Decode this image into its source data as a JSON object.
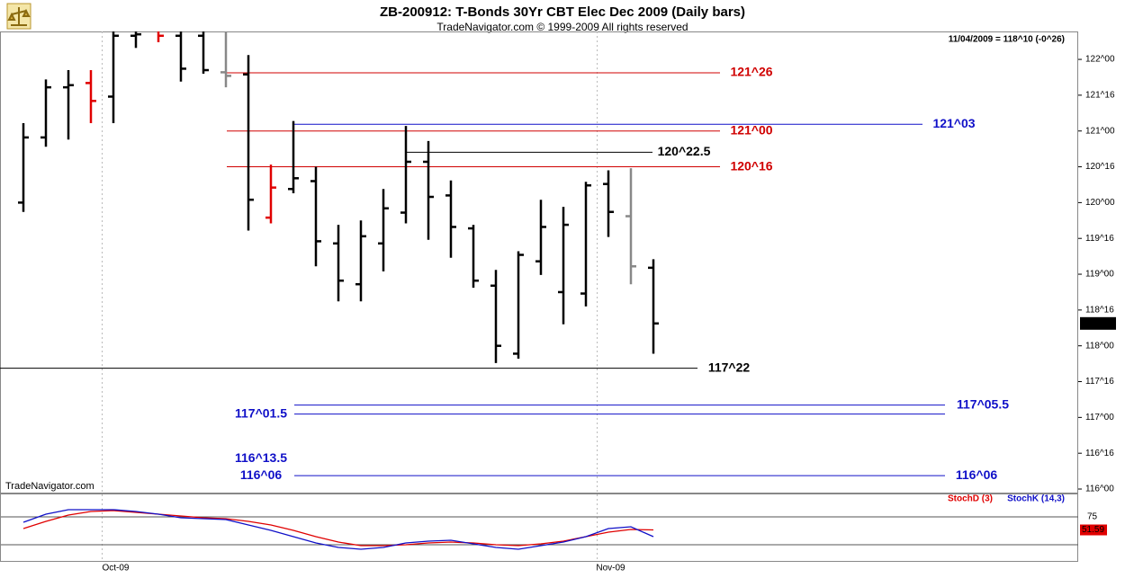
{
  "chart_data": {
    "type": "ohlc",
    "title": "ZB-200912:  T-Bonds 30Yr CBT Elec Dec 2009  (Daily bars)",
    "subtitle": "TradeNavigator.com © 1999-2009 All rights reserved",
    "last_quote": "11/04/2009 = 118^10 (-0^26)",
    "watermark": "TradeNavigator.com",
    "last_price": {
      "value": 118.3125,
      "label": "118^10"
    },
    "open": [
      120.0,
      120.91,
      121.61,
      121.67,
      121.48,
      122.33,
      122.45,
      122.33,
      122.33,
      121.82,
      121.79,
      119.79,
      120.19,
      120.3,
      119.43,
      118.86,
      119.43,
      119.86,
      120.57,
      120.1,
      119.64,
      118.84,
      117.89,
      119.18,
      118.75,
      118.73,
      120.26,
      119.81,
      119.09
    ],
    "high": [
      121.11,
      121.72,
      121.85,
      121.85,
      122.45,
      122.58,
      122.52,
      122.45,
      122.45,
      122.39,
      122.06,
      120.53,
      121.14,
      120.5,
      119.69,
      119.75,
      120.19,
      121.07,
      120.86,
      120.31,
      119.69,
      119.06,
      119.32,
      120.04,
      119.94,
      120.29,
      120.45,
      120.48,
      119.21
    ],
    "low": [
      119.87,
      120.78,
      120.88,
      121.11,
      121.11,
      122.16,
      122.24,
      121.69,
      121.8,
      121.61,
      119.61,
      119.71,
      120.13,
      119.11,
      118.62,
      118.62,
      119.04,
      119.71,
      119.48,
      119.23,
      118.81,
      117.76,
      117.82,
      118.99,
      118.3,
      118.55,
      119.52,
      118.86,
      117.89
    ],
    "close": [
      120.91,
      121.61,
      121.64,
      121.42,
      122.33,
      122.35,
      122.33,
      121.87,
      121.85,
      121.77,
      120.04,
      120.21,
      120.34,
      119.46,
      118.91,
      119.53,
      119.92,
      120.57,
      120.08,
      119.66,
      118.91,
      118.0,
      119.27,
      119.66,
      119.69,
      120.24,
      119.87,
      119.11,
      118.3125
    ],
    "colors": [
      "#000",
      "#000",
      "#000",
      "#e00000",
      "#000",
      "#000",
      "#e00000",
      "#000",
      "#000",
      "#888",
      "#000",
      "#e00000",
      "#000",
      "#000",
      "#000",
      "#000",
      "#000",
      "#000",
      "#000",
      "#000",
      "#000",
      "#000",
      "#000",
      "#000",
      "#000",
      "#000",
      "#000",
      "#888",
      "#000"
    ],
    "ylim": [
      115.95,
      122.39
    ],
    "yticks": [
      {
        "value": 116,
        "label": "116^00"
      },
      {
        "value": 116.5,
        "label": "116^16"
      },
      {
        "value": 117,
        "label": "117^00"
      },
      {
        "value": 117.5,
        "label": "117^16"
      },
      {
        "value": 118,
        "label": "118^00"
      },
      {
        "value": 118.5,
        "label": "118^16"
      },
      {
        "value": 119,
        "label": "119^00"
      },
      {
        "value": 119.5,
        "label": "119^16"
      },
      {
        "value": 120,
        "label": "120^00"
      },
      {
        "value": 120.5,
        "label": "120^16"
      },
      {
        "value": 121,
        "label": "121^00"
      },
      {
        "value": 121.5,
        "label": "121^16"
      },
      {
        "value": 122,
        "label": "122^00"
      }
    ],
    "xticks": [
      {
        "value": 3.5,
        "label": "Oct-09"
      },
      {
        "value": 25.5,
        "label": "Nov-09"
      }
    ],
    "levels": [
      {
        "value": 121.8125,
        "label": "121^26",
        "color": "#d00000"
      },
      {
        "value": 121.09375,
        "label": "121^03",
        "color": "#1010c8"
      },
      {
        "value": 121.0,
        "label": "121^00",
        "color": "#d00000"
      },
      {
        "value": 120.703125,
        "label": "120^22.5",
        "color": "#000000"
      },
      {
        "value": 120.5,
        "label": "120^16",
        "color": "#d00000"
      },
      {
        "value": 117.6875,
        "label": "117^22",
        "color": "#000000"
      },
      {
        "value": 117.171875,
        "label": "117^05.5",
        "color": "#1010c8"
      },
      {
        "value": 117.046875,
        "label": "117^01.5",
        "color": "#1010c8"
      },
      {
        "value": 116.421875,
        "label": "116^13.5",
        "color": "#1010c8"
      },
      {
        "value": 116.1875,
        "label": "116^06",
        "color": "#1010c8"
      }
    ],
    "stoch": {
      "ylim": [
        0,
        100
      ],
      "yticks": [
        75
      ],
      "guides": [
        75,
        25
      ],
      "series": [
        {
          "name": "StochD (3)",
          "color": "#e00000",
          "values": [
            54.0,
            66.9,
            78.2,
            84.7,
            86.3,
            83.1,
            79.8,
            76.6,
            73.4,
            71.8,
            66.9,
            60.5,
            50.8,
            39.5,
            29.8,
            23.4,
            23.4,
            25.0,
            28.2,
            29.8,
            28.2,
            25.0,
            23.4,
            26.6,
            31.5,
            39.5,
            47.6,
            52.4,
            51.59
          ],
          "last_label": "51.59"
        },
        {
          "name": "StochK (14,3)",
          "color": "#1010c8",
          "values": [
            65.3,
            79.8,
            87.9,
            87.9,
            87.9,
            84.7,
            79.8,
            73.4,
            71.8,
            70.2,
            60.5,
            50.8,
            39.5,
            28.2,
            20.2,
            16.9,
            20.2,
            28.2,
            31.5,
            33.1,
            26.6,
            20.2,
            16.9,
            23.4,
            29.8,
            39.5,
            54.0,
            57.3,
            39.5
          ]
        }
      ]
    }
  }
}
